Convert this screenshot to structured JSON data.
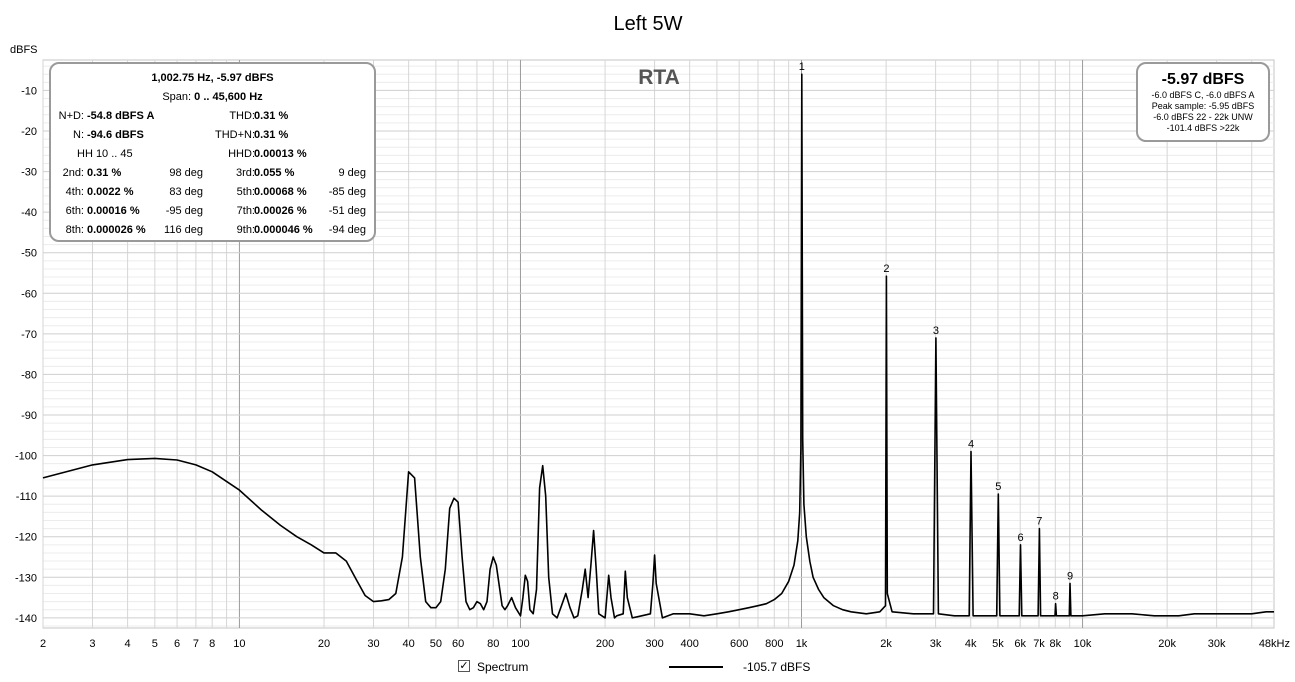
{
  "chart_data": {
    "type": "line",
    "title": "Left 5W",
    "ylabel": "dBFS",
    "watermark": "RTA",
    "x_scale": "log",
    "xlim": [
      2,
      48000
    ],
    "ylim": [
      -142.5,
      -2.5
    ],
    "grid": true,
    "x_ticks": [
      {
        "v": 2,
        "label": "2"
      },
      {
        "v": 3,
        "label": "3"
      },
      {
        "v": 4,
        "label": "4"
      },
      {
        "v": 5,
        "label": "5"
      },
      {
        "v": 6,
        "label": "6"
      },
      {
        "v": 7,
        "label": "7"
      },
      {
        "v": 8,
        "label": "8"
      },
      {
        "v": 10,
        "label": "10"
      },
      {
        "v": 20,
        "label": "20"
      },
      {
        "v": 30,
        "label": "30"
      },
      {
        "v": 40,
        "label": "40"
      },
      {
        "v": 50,
        "label": "50"
      },
      {
        "v": 60,
        "label": "60"
      },
      {
        "v": 80,
        "label": "80"
      },
      {
        "v": 100,
        "label": "100"
      },
      {
        "v": 200,
        "label": "200"
      },
      {
        "v": 300,
        "label": "300"
      },
      {
        "v": 400,
        "label": "400"
      },
      {
        "v": 600,
        "label": "600"
      },
      {
        "v": 800,
        "label": "800"
      },
      {
        "v": 1000,
        "label": "1k"
      },
      {
        "v": 2000,
        "label": "2k"
      },
      {
        "v": 3000,
        "label": "3k"
      },
      {
        "v": 4000,
        "label": "4k"
      },
      {
        "v": 5000,
        "label": "5k"
      },
      {
        "v": 6000,
        "label": "6k"
      },
      {
        "v": 7000,
        "label": "7k"
      },
      {
        "v": 8000,
        "label": "8k"
      },
      {
        "v": 10000,
        "label": "10k"
      },
      {
        "v": 20000,
        "label": "20k"
      },
      {
        "v": 30000,
        "label": "30k"
      },
      {
        "v": 48000,
        "label": "48kHz"
      }
    ],
    "y_ticks": [
      {
        "v": -10,
        "label": "-10"
      },
      {
        "v": -20,
        "label": "-20"
      },
      {
        "v": -30,
        "label": "-30"
      },
      {
        "v": -40,
        "label": "-40"
      },
      {
        "v": -50,
        "label": "-50"
      },
      {
        "v": -60,
        "label": "-60"
      },
      {
        "v": -70,
        "label": "-70"
      },
      {
        "v": -80,
        "label": "-80"
      },
      {
        "v": -90,
        "label": "-90"
      },
      {
        "v": -100,
        "label": "-100"
      },
      {
        "v": -110,
        "label": "-110"
      },
      {
        "v": -120,
        "label": "-120"
      },
      {
        "v": -130,
        "label": "-130"
      },
      {
        "v": -140,
        "label": "-140"
      }
    ],
    "series": [
      {
        "name": "Spectrum",
        "color": "#000000",
        "x": [
          2,
          3,
          4,
          5,
          6,
          7,
          8,
          10,
          12,
          14,
          16,
          18,
          20,
          22,
          24,
          26,
          28,
          30,
          32,
          34,
          36,
          38,
          40,
          42,
          44,
          46,
          48,
          50,
          52,
          54,
          56,
          58,
          60,
          62,
          64,
          66,
          68,
          70,
          72,
          74,
          76,
          78,
          80,
          82,
          84,
          86,
          88,
          90,
          93,
          96,
          100,
          102,
          104,
          106,
          108,
          111,
          114,
          117,
          120,
          123,
          126,
          130,
          135,
          140,
          145,
          150,
          155,
          160,
          166,
          170,
          174,
          178,
          182,
          186,
          190,
          200,
          206,
          210,
          216,
          220,
          232,
          236,
          240,
          250,
          270,
          290,
          296,
          300,
          304,
          320,
          350,
          400,
          450,
          500,
          550,
          600,
          650,
          700,
          750,
          800,
          850,
          900,
          940,
          970,
          985,
          995,
          1002.75,
          1010,
          1020,
          1040,
          1070,
          1100,
          1150,
          1200,
          1300,
          1400,
          1500,
          1700,
          1900,
          1990,
          2005,
          2020,
          2100,
          2500,
          2950,
          3008,
          3070,
          3500,
          3950,
          4011,
          4080,
          4500,
          4950,
          5014,
          5080,
          5600,
          5950,
          6017,
          6080,
          6600,
          6950,
          7020,
          7090,
          7650,
          7980,
          8022,
          8070,
          8600,
          8970,
          9025,
          9090,
          10000,
          12000,
          15000,
          18000,
          22000,
          25000,
          30000,
          35000,
          40000,
          45000,
          48000
        ],
        "y": [
          -105.5,
          -102.3,
          -101.0,
          -100.7,
          -101.1,
          -102.3,
          -104.0,
          -108.5,
          -113.5,
          -117.2,
          -120.0,
          -122.0,
          -124.0,
          -124.0,
          -126.0,
          -130.5,
          -134.5,
          -136.0,
          -135.8,
          -135.5,
          -134.0,
          -125.0,
          -104.0,
          -105.5,
          -125.0,
          -136.0,
          -137.5,
          -137.5,
          -136.0,
          -128.0,
          -113.0,
          -110.5,
          -111.5,
          -125.0,
          -136.0,
          -138.0,
          -137.5,
          -136.0,
          -136.5,
          -138.0,
          -136.0,
          -128.0,
          -125.0,
          -127.0,
          -132.0,
          -137.0,
          -138.0,
          -137.0,
          -135.0,
          -137.5,
          -139.5,
          -135.0,
          -129.5,
          -131.0,
          -138.0,
          -139.0,
          -133.0,
          -108.0,
          -102.5,
          -110.0,
          -130.0,
          -139.0,
          -140.0,
          -137.0,
          -134.0,
          -137.5,
          -140.0,
          -139.5,
          -133.0,
          -128.0,
          -135.0,
          -127.0,
          -118.5,
          -128.0,
          -139.0,
          -140.0,
          -129.5,
          -135.0,
          -140.0,
          -139.5,
          -139.0,
          -128.5,
          -135.0,
          -140.0,
          -139.5,
          -139.0,
          -131.5,
          -124.5,
          -131.5,
          -140.0,
          -139.0,
          -139.0,
          -139.5,
          -139.0,
          -138.5,
          -138.0,
          -137.5,
          -137.0,
          -136.5,
          -135.5,
          -134.0,
          -131.0,
          -127.0,
          -121.0,
          -114.0,
          -98.0,
          -6.0,
          -96.0,
          -112.0,
          -120.0,
          -126.0,
          -130.0,
          -133.0,
          -135.0,
          -137.0,
          -138.0,
          -138.5,
          -139.0,
          -138.5,
          -137.0,
          -55.8,
          -134.0,
          -138.5,
          -139.0,
          -139.0,
          -71.0,
          -139.0,
          -139.5,
          -139.5,
          -99.0,
          -139.5,
          -139.5,
          -139.5,
          -109.5,
          -139.5,
          -139.5,
          -139.5,
          -122.0,
          -139.5,
          -139.5,
          -139.5,
          -118.0,
          -139.5,
          -139.5,
          -139.5,
          -136.5,
          -139.5,
          -139.5,
          -139.5,
          -131.5,
          -139.5,
          -139.5,
          -139.0,
          -139.0,
          -139.5,
          -139.5,
          -139.0,
          -139.0,
          -139.0,
          -139.0,
          -138.5,
          -138.5
        ]
      }
    ],
    "harmonic_markers": [
      {
        "label": "1",
        "x": 1002.75,
        "y": -6.0
      },
      {
        "label": "2",
        "x": 2005,
        "y": -55.8
      },
      {
        "label": "3",
        "x": 3008,
        "y": -71.0
      },
      {
        "label": "4",
        "x": 4011,
        "y": -99.0
      },
      {
        "label": "5",
        "x": 5014,
        "y": -109.5
      },
      {
        "label": "6",
        "x": 6017,
        "y": -122.0
      },
      {
        "label": "7",
        "x": 7020,
        "y": -118.0
      },
      {
        "label": "8",
        "x": 8022,
        "y": -136.5
      },
      {
        "label": "9",
        "x": 9025,
        "y": -131.5
      }
    ]
  },
  "stats": {
    "peak": "1,002.75 Hz, -5.97 dBFS",
    "span_label": "Span:",
    "span_value": "0 .. 45,600 Hz",
    "nd_label": "N+D:",
    "nd_value": "-54.8 dBFS A",
    "thd_label": "THD:",
    "thd_value": "0.31 %",
    "n_label": "N:",
    "n_value": "-94.6 dBFS",
    "thdn_label": "THD+N:",
    "thdn_value": "0.31 %",
    "hh_range": "HH 10 .. 45",
    "hhd_label": "HHD:",
    "hhd_value": "0.00013 %",
    "harmonics": [
      {
        "a_label": "2nd:",
        "a_value": "0.31 %",
        "a_deg": "98 deg",
        "b_label": "3rd:",
        "b_value": "0.055 %",
        "b_deg": "9 deg"
      },
      {
        "a_label": "4th:",
        "a_value": "0.0022 %",
        "a_deg": "83 deg",
        "b_label": "5th:",
        "b_value": "0.00068 %",
        "b_deg": "-85 deg"
      },
      {
        "a_label": "6th:",
        "a_value": "0.00016 %",
        "a_deg": "-95 deg",
        "b_label": "7th:",
        "b_value": "0.00026 %",
        "b_deg": "-51 deg"
      },
      {
        "a_label": "8th:",
        "a_value": "0.000026 %",
        "a_deg": "116 deg",
        "b_label": "9th:",
        "b_value": "0.000046 %",
        "b_deg": "-94 deg"
      }
    ]
  },
  "level": {
    "main": "-5.97 dBFS",
    "line1": "-6.0 dBFS C, -6.0 dBFS A",
    "line2": "Peak sample: -5.95 dBFS",
    "line3": "-6.0 dBFS 22 - 22k UNW",
    "line4": "-101.4 dBFS >22k"
  },
  "legend": {
    "checkbox_mark": "✓",
    "label": "Spectrum",
    "value": "-105.7 dBFS"
  }
}
